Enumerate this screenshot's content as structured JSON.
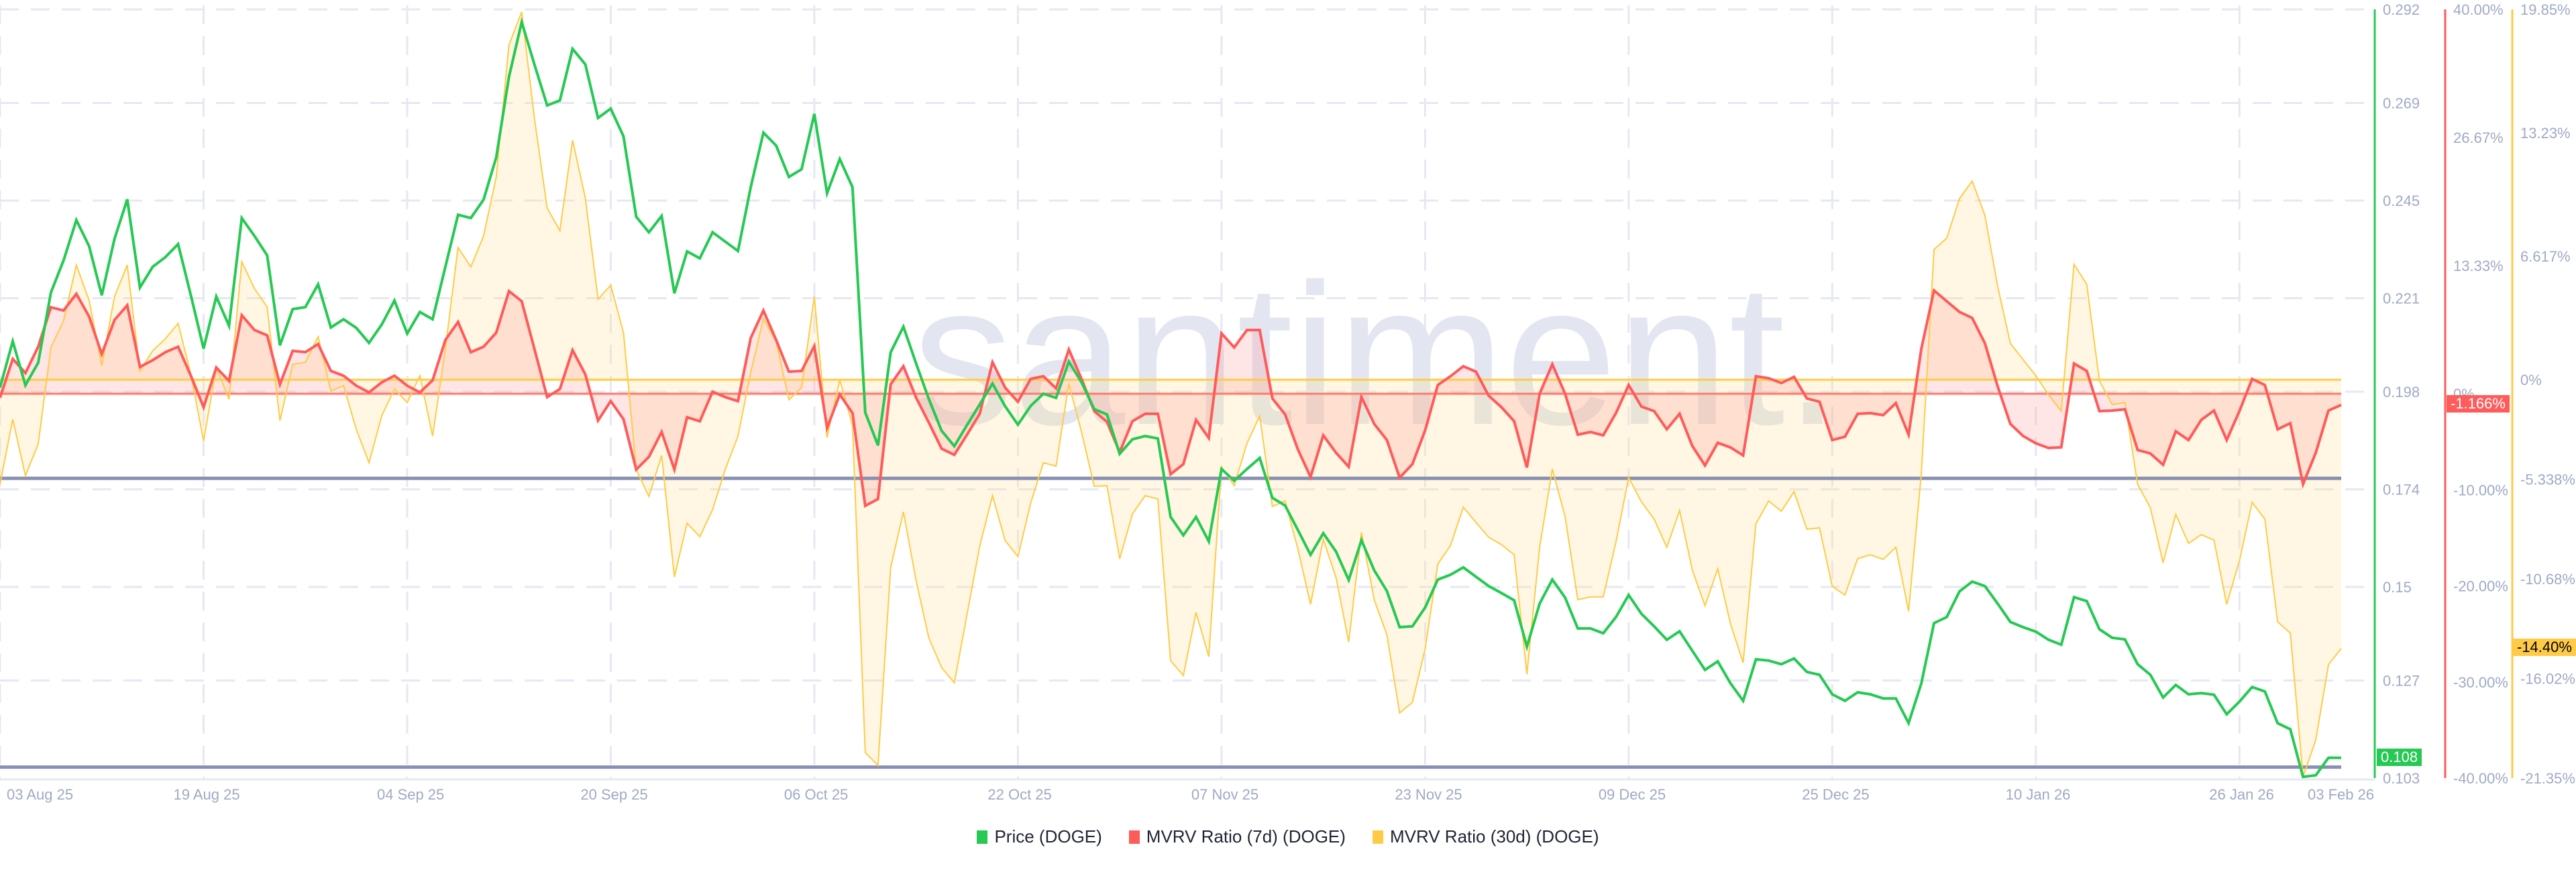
{
  "watermark": "santiment.",
  "legend": [
    {
      "label": "Price (DOGE)",
      "color": "#26c953"
    },
    {
      "label": "MVRV Ratio (7d) (DOGE)",
      "color": "#ff5b5b"
    },
    {
      "label": "MVRV Ratio (30d) (DOGE)",
      "color": "#ffcb47"
    }
  ],
  "badges": {
    "price_last": "0.108",
    "mvrv7_last": "-1.166%",
    "mvrv30_last": "-14.40%"
  },
  "chart_data": {
    "type": "line",
    "title": "",
    "xlabel": "",
    "x_ticks": [
      "03 Aug 25",
      "19 Aug 25",
      "04 Sep 25",
      "20 Sep 25",
      "06 Oct 25",
      "22 Oct 25",
      "07 Nov 25",
      "23 Nov 25",
      "09 Dec 25",
      "25 Dec 25",
      "10 Jan 26",
      "26 Jan 26",
      "03 Feb 26"
    ],
    "x_range": [
      "03 Aug 25",
      "03 Feb 26"
    ],
    "grid": true,
    "legend_position": "bottom",
    "axes": [
      {
        "series": "Price (DOGE)",
        "color": "#26c953",
        "ticks": [
          "0.292",
          "0.269",
          "0.245",
          "0.221",
          "0.198",
          "0.174",
          "0.15",
          "0.127",
          "0.103"
        ],
        "ylim": [
          0.103,
          0.292
        ]
      },
      {
        "series": "MVRV Ratio (7d) (DOGE)",
        "color": "#ff5b5b",
        "ticks": [
          "40.00%",
          "26.67%",
          "13.33%",
          "0%",
          "-10.00%",
          "-20.00%",
          "-30.00%",
          "-40.00%"
        ],
        "ylim": [
          -40,
          40
        ]
      },
      {
        "series": "MVRV Ratio (30d) (DOGE)",
        "color": "#ffcb47",
        "ticks": [
          "19.85%",
          "13.23%",
          "6.617%",
          "0%",
          "-5.338%",
          "-10.68%",
          "-16.02%",
          "-21.35%"
        ],
        "ylim": [
          -21.35,
          19.85
        ]
      }
    ],
    "series": [
      {
        "name": "Price (DOGE)",
        "unit": "USD",
        "values": [
          0.199,
          0.2104,
          0.1996,
          0.2051,
          0.2224,
          0.2303,
          0.2402,
          0.2338,
          0.2217,
          0.2356,
          0.2453,
          0.2236,
          0.2287,
          0.2311,
          0.2343,
          0.2217,
          0.2086,
          0.2214,
          0.2142,
          0.2407,
          0.2363,
          0.2315,
          0.2094,
          0.2183,
          0.2188,
          0.2244,
          0.2138,
          0.2158,
          0.2137,
          0.21,
          0.2145,
          0.2204,
          0.2123,
          0.2176,
          0.2158,
          0.2287,
          0.2415,
          0.2407,
          0.2452,
          0.2556,
          0.2754,
          0.2889,
          0.2785,
          0.2684,
          0.2696,
          0.2823,
          0.2785,
          0.2653,
          0.2676,
          0.2608,
          0.241,
          0.2372,
          0.2412,
          0.2222,
          0.2325,
          0.2308,
          0.2372,
          0.2349,
          0.2326,
          0.2483,
          0.2617,
          0.2585,
          0.2508,
          0.2527,
          0.2663,
          0.2468,
          0.2552,
          0.2483,
          0.1929,
          0.1848,
          0.2077,
          0.214,
          0.2049,
          0.1962,
          0.1884,
          0.1846,
          0.1898,
          0.1949,
          0.2,
          0.1944,
          0.1899,
          0.1945,
          0.1975,
          0.1965,
          0.2054,
          0.2003,
          0.1937,
          0.1924,
          0.1827,
          0.1863,
          0.1871,
          0.1865,
          0.1672,
          0.1627,
          0.1672,
          0.1612,
          0.179,
          0.1761,
          0.179,
          0.1817,
          0.1719,
          0.17,
          0.164,
          0.1579,
          0.1632,
          0.1587,
          0.1517,
          0.1615,
          0.1541,
          0.149,
          0.1401,
          0.1403,
          0.1449,
          0.1518,
          0.153,
          0.1548,
          0.1525,
          0.1502,
          0.1485,
          0.1467,
          0.1353,
          0.1459,
          0.1518,
          0.1474,
          0.1398,
          0.1398,
          0.1386,
          0.1426,
          0.148,
          0.1434,
          0.1403,
          0.137,
          0.1391,
          0.1343,
          0.1296,
          0.1317,
          0.1263,
          0.122,
          0.1322,
          0.1319,
          0.131,
          0.1324,
          0.1291,
          0.1284,
          0.1236,
          0.122,
          0.1241,
          0.1236,
          0.1226,
          0.1226,
          0.1165,
          0.1263,
          0.1411,
          0.1426,
          0.1489,
          0.1513,
          0.1502,
          0.1459,
          0.1414,
          0.1401,
          0.139,
          0.137,
          0.1358,
          0.1475,
          0.1465,
          0.1396,
          0.1375,
          0.1371,
          0.131,
          0.1284,
          0.1228,
          0.1259,
          0.1236,
          0.1239,
          0.1235,
          0.1187,
          0.1218,
          0.1254,
          0.1243,
          0.1165,
          0.115,
          0.1033,
          0.1037,
          0.108,
          0.108
        ]
      },
      {
        "name": "MVRV Ratio (7d) (DOGE)",
        "unit": "%",
        "values": [
          -0.42,
          3.63,
          2.16,
          4.89,
          9.0,
          8.66,
          10.4,
          8.03,
          4.12,
          7.68,
          9.21,
          2.79,
          3.49,
          4.33,
          4.89,
          1.88,
          -1.4,
          2.72,
          1.33,
          8.17,
          6.63,
          6.07,
          0.98,
          4.47,
          4.33,
          5.17,
          2.37,
          1.88,
          0.84,
          0.14,
          1.19,
          1.88,
          0.84,
          0.14,
          1.4,
          5.59,
          7.47,
          4.33,
          4.89,
          6.35,
          10.68,
          9.63,
          4.68,
          -0.35,
          0.49,
          4.54,
          2.02,
          -2.79,
          -0.77,
          -2.65,
          -7.89,
          -6.56,
          -3.98,
          -7.89,
          -2.44,
          -2.86,
          0.21,
          -0.35,
          -0.77,
          5.8,
          8.66,
          5.59,
          2.3,
          2.37,
          4.96,
          -3.56,
          -0.07,
          -2.02,
          -11.66,
          -10.96,
          0.98,
          2.86,
          -0.42,
          -3.0,
          -5.72,
          -6.35,
          -4.26,
          -2.09,
          3.28,
          0.63,
          -0.84,
          1.54,
          1.82,
          0.56,
          4.61,
          1.54,
          -1.81,
          -2.93,
          -6.07,
          -2.86,
          -2.09,
          -2.09,
          -8.38,
          -7.33,
          -2.72,
          -4.61,
          6.28,
          4.82,
          6.63,
          6.63,
          -0.49,
          -2.16,
          -5.79,
          -8.66,
          -4.33,
          -6.14,
          -7.61,
          -0.35,
          -3.14,
          -4.82,
          -8.73,
          -7.33,
          -3.84,
          0.91,
          1.82,
          2.86,
          2.3,
          -0.21,
          -1.4,
          -2.86,
          -7.68,
          0.0,
          3.07,
          0.0,
          -4.26,
          -3.98,
          -4.33,
          -2.02,
          0.91,
          -1.33,
          -1.81,
          -3.7,
          -2.09,
          -5.44,
          -7.47,
          -5.1,
          -5.59,
          -6.42,
          1.82,
          1.61,
          1.12,
          1.75,
          -0.49,
          -0.84,
          -4.82,
          -4.47,
          -2.09,
          -2.02,
          -2.23,
          -0.98,
          -4.26,
          4.68,
          10.75,
          9.63,
          8.52,
          7.89,
          5.24,
          0.77,
          -3.14,
          -4.4,
          -5.16,
          -5.65,
          -5.58,
          3.14,
          2.37,
          -1.81,
          -1.75,
          -1.61,
          -5.86,
          -6.21,
          -7.4,
          -3.91,
          -4.82,
          -2.72,
          -1.75,
          -4.82,
          -1.81,
          1.54,
          0.91,
          -3.7,
          -3.07,
          -9.42,
          -6.14,
          -1.75,
          -1.166
        ]
      },
      {
        "name": "MVRV Ratio (30d) (DOGE)",
        "unit": "%",
        "values": [
          -5.6,
          -2.12,
          -5.14,
          -3.45,
          1.73,
          3.17,
          6.15,
          4.25,
          0.76,
          4.46,
          6.15,
          0.47,
          1.55,
          2.2,
          3.02,
          0.29,
          -3.27,
          0.65,
          -1.04,
          6.33,
          4.89,
          3.89,
          -2.19,
          0.83,
          0.94,
          2.31,
          -0.61,
          -0.32,
          -2.66,
          -4.45,
          -1.94,
          -0.5,
          -1.22,
          0.22,
          -3.02,
          1.66,
          7.09,
          6.05,
          7.7,
          10.86,
          17.94,
          19.71,
          14.03,
          9.21,
          7.99,
          12.84,
          9.75,
          4.32,
          5.07,
          2.52,
          -4.81,
          -6.25,
          -4.06,
          -10.56,
          -7.69,
          -8.41,
          -6.97,
          -4.81,
          -3.02,
          0.4,
          3.28,
          2.05,
          -1.07,
          -0.43,
          4.46,
          -3.09,
          0.0,
          -2.44,
          -19.98,
          -20.67,
          -10.06,
          -7.08,
          -10.78,
          -13.84,
          -15.42,
          -16.24,
          -12.58,
          -8.91,
          -6.21,
          -8.62,
          -9.48,
          -6.61,
          -4.45,
          -4.63,
          -0.21,
          -2.8,
          -5.71,
          -5.68,
          -9.59,
          -7.19,
          -6.21,
          -6.39,
          -15.06,
          -15.85,
          -12.47,
          -14.84,
          -4.67,
          -5.68,
          -3.41,
          -1.94,
          -6.79,
          -6.5,
          -9.06,
          -12.04,
          -8.55,
          -10.6,
          -14.05,
          -8.19,
          -11.79,
          -13.66,
          -17.86,
          -17.29,
          -14.45,
          -9.88,
          -8.88,
          -6.83,
          -7.65,
          -8.44,
          -8.84,
          -9.38,
          -15.78,
          -8.98,
          -4.78,
          -7.33,
          -11.79,
          -11.64,
          -11.64,
          -8.7,
          -5.24,
          -6.54,
          -7.47,
          -8.98,
          -7.01,
          -10.2,
          -12.11,
          -10.13,
          -13.08,
          -15.17,
          -7.72,
          -6.5,
          -7.04,
          -6.0,
          -8.01,
          -7.94,
          -11.07,
          -11.54,
          -9.59,
          -9.38,
          -9.63,
          -8.98,
          -12.4,
          -5.03,
          6.98,
          7.59,
          9.71,
          10.65,
          8.81,
          5.0,
          1.95,
          1.08,
          0.22,
          -0.82,
          -1.68,
          6.19,
          5.11,
          -0.07,
          -1.33,
          -1.22,
          -5.6,
          -6.86,
          -9.81,
          -7.22,
          -8.77,
          -8.3,
          -8.59,
          -12.04,
          -9.7,
          -6.57,
          -7.47,
          -12.97,
          -13.58,
          -21.28,
          -19.3,
          -15.27,
          -14.4
        ]
      }
    ],
    "reference_lines": [
      {
        "axis": 1,
        "value": 0,
        "color": "#ff7a6e"
      },
      {
        "axis": 2,
        "value": 0,
        "color": "#ffcb47"
      },
      {
        "axis": 0,
        "value": 0.1767,
        "color": "#8790b0"
      },
      {
        "axis": 0,
        "value": 0.1057,
        "color": "#8790b0"
      }
    ]
  }
}
